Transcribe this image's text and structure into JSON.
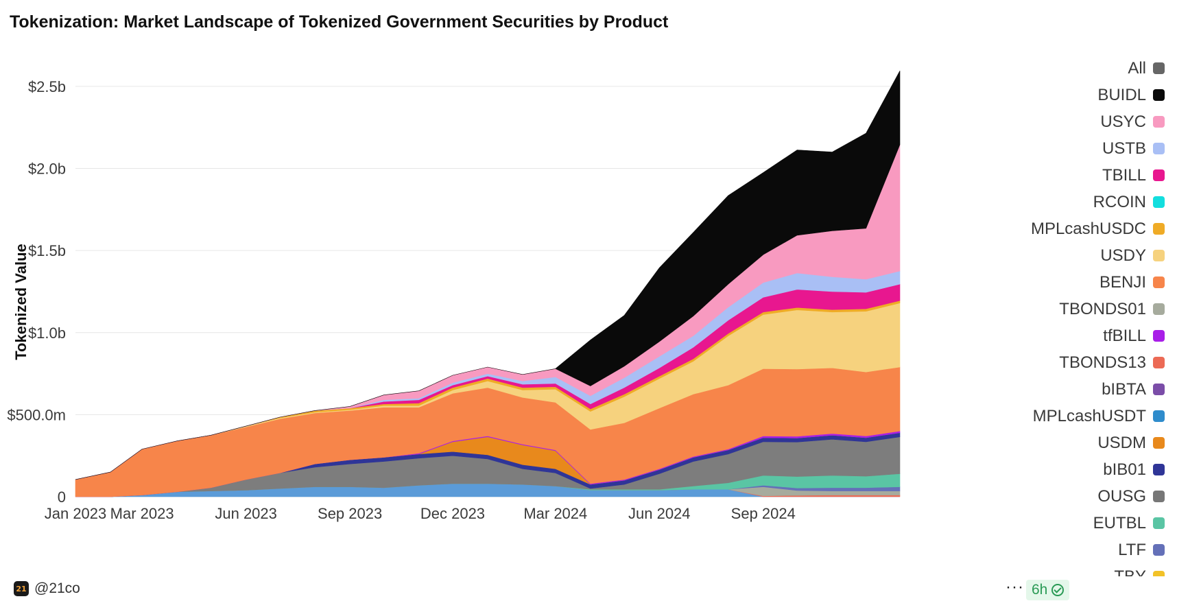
{
  "title": "Tokenization: Market Landscape of Tokenized Government Securities by Product",
  "footer": {
    "handle": "@21co",
    "logo_text": "21",
    "more_label": "···",
    "refresh_label": "6h"
  },
  "chart_data": {
    "type": "area",
    "title": "Tokenization: Market Landscape of Tokenized Government Securities by Product",
    "xlabel": "",
    "ylabel": "Tokenized Value",
    "ylim": [
      0,
      2650000000
    ],
    "grid": true,
    "legend_position": "right",
    "y_ticks": [
      {
        "value": 0,
        "label": "0"
      },
      {
        "value": 500000000,
        "label": "$500.0m"
      },
      {
        "value": 1000000000,
        "label": "$1.0b"
      },
      {
        "value": 1500000000,
        "label": "$1.5b"
      },
      {
        "value": 2000000000,
        "label": "$2.0b"
      },
      {
        "value": 2500000000,
        "label": "$2.5b"
      }
    ],
    "x_ticks": [
      {
        "value": "2023-01-01",
        "label": "Jan 2023"
      },
      {
        "value": "2023-03-01",
        "label": "Mar 2023"
      },
      {
        "value": "2023-06-01",
        "label": "Jun 2023"
      },
      {
        "value": "2023-09-01",
        "label": "Sep 2023"
      },
      {
        "value": "2023-12-01",
        "label": "Dec 2023"
      },
      {
        "value": "2024-03-01",
        "label": "Mar 2024"
      },
      {
        "value": "2024-06-01",
        "label": "Jun 2024"
      },
      {
        "value": "2024-09-01",
        "label": "Sep 2024"
      }
    ],
    "xlim": [
      "2023-01-01",
      "2024-12-31"
    ],
    "legend": [
      {
        "name": "All",
        "color": "#666666"
      },
      {
        "name": "BUIDL",
        "color": "#0a0a0a"
      },
      {
        "name": "USYC",
        "color": "#f89ac0"
      },
      {
        "name": "USTB",
        "color": "#a9bff5"
      },
      {
        "name": "TBILL",
        "color": "#e8178f"
      },
      {
        "name": "RCOIN",
        "color": "#13dede"
      },
      {
        "name": "MPLcashUSDC",
        "color": "#efab26"
      },
      {
        "name": "USDY",
        "color": "#f6d27e"
      },
      {
        "name": "BENJI",
        "color": "#f7854a"
      },
      {
        "name": "TBONDS01",
        "color": "#a6ab9d"
      },
      {
        "name": "tfBILL",
        "color": "#a91ee8"
      },
      {
        "name": "TBONDS13",
        "color": "#ec6a55"
      },
      {
        "name": "bIBTA",
        "color": "#7b4da8"
      },
      {
        "name": "MPLcashUSDT",
        "color": "#2f8ccc"
      },
      {
        "name": "USDM",
        "color": "#e8891c"
      },
      {
        "name": "bIB01",
        "color": "#2f3597"
      },
      {
        "name": "OUSG",
        "color": "#777777"
      },
      {
        "name": "EUTBL",
        "color": "#5ac5a4"
      },
      {
        "name": "LTF",
        "color": "#6470b8"
      },
      {
        "name": "TBY",
        "color": "#f2c228"
      }
    ],
    "x": [
      "2023-01-01",
      "2023-02-01",
      "2023-03-01",
      "2023-04-01",
      "2023-05-01",
      "2023-06-01",
      "2023-07-01",
      "2023-08-01",
      "2023-09-01",
      "2023-10-01",
      "2023-11-01",
      "2023-12-01",
      "2024-01-01",
      "2024-02-01",
      "2024-03-01",
      "2024-04-01",
      "2024-05-01",
      "2024-06-01",
      "2024-07-01",
      "2024-08-01",
      "2024-09-01",
      "2024-10-01",
      "2024-11-01",
      "2024-12-01",
      "2024-12-31"
    ],
    "series": [
      {
        "name": "MPLcashUSDT",
        "color": "#5b9bd8",
        "values": [
          0,
          0,
          10,
          30,
          35,
          40,
          50,
          60,
          60,
          55,
          70,
          80,
          80,
          75,
          65,
          40,
          40,
          40,
          45,
          45,
          0,
          0,
          0,
          0,
          0
        ]
      },
      {
        "name": "TBONDS13",
        "color": "#ec6a55",
        "values": [
          0,
          0,
          0,
          0,
          0,
          0,
          0,
          0,
          0,
          0,
          0,
          0,
          0,
          0,
          0,
          0,
          0,
          0,
          0,
          0,
          5,
          8,
          10,
          10,
          10
        ]
      },
      {
        "name": "TBONDS01",
        "color": "#a6ab9d",
        "values": [
          0,
          0,
          0,
          0,
          0,
          0,
          0,
          0,
          0,
          0,
          0,
          0,
          0,
          0,
          0,
          0,
          0,
          0,
          0,
          0,
          55,
          30,
          25,
          25,
          25
        ]
      },
      {
        "name": "LTF",
        "color": "#6470b8",
        "values": [
          0,
          0,
          0,
          0,
          0,
          0,
          0,
          0,
          0,
          0,
          0,
          0,
          0,
          0,
          0,
          0,
          0,
          0,
          0,
          0,
          10,
          15,
          20,
          20,
          25
        ]
      },
      {
        "name": "EUTBL",
        "color": "#5ac5a4",
        "values": [
          0,
          0,
          0,
          0,
          0,
          0,
          0,
          0,
          0,
          0,
          0,
          0,
          0,
          0,
          0,
          5,
          5,
          5,
          20,
          40,
          60,
          70,
          75,
          70,
          80
        ]
      },
      {
        "name": "OUSG",
        "color": "#7d7d7d",
        "values": [
          0,
          0,
          0,
          0,
          20,
          65,
          95,
          120,
          140,
          160,
          165,
          170,
          150,
          95,
          80,
          5,
          30,
          95,
          150,
          175,
          205,
          210,
          220,
          210,
          225
        ]
      },
      {
        "name": "bIB01",
        "color": "#2f3597",
        "values": [
          0,
          0,
          0,
          0,
          0,
          0,
          0,
          20,
          25,
          25,
          25,
          25,
          25,
          25,
          25,
          25,
          25,
          25,
          25,
          25,
          25,
          25,
          25,
          25,
          25
        ]
      },
      {
        "name": "USDM",
        "color": "#e8891c",
        "values": [
          0,
          0,
          0,
          0,
          0,
          0,
          0,
          0,
          0,
          0,
          0,
          60,
          110,
          120,
          110,
          0,
          0,
          0,
          0,
          0,
          0,
          0,
          0,
          0,
          0
        ]
      },
      {
        "name": "tfBILL",
        "color": "#a91ee8",
        "values": [
          0,
          0,
          0,
          0,
          0,
          0,
          0,
          0,
          0,
          0,
          5,
          5,
          5,
          5,
          5,
          5,
          5,
          5,
          5,
          5,
          10,
          10,
          10,
          10,
          10
        ]
      },
      {
        "name": "BENJI",
        "color": "#f7854a",
        "values": [
          105,
          150,
          280,
          310,
          320,
          320,
          330,
          310,
          300,
          305,
          280,
          290,
          295,
          285,
          290,
          330,
          345,
          370,
          380,
          390,
          410,
          410,
          400,
          390,
          390
        ]
      },
      {
        "name": "USDY",
        "color": "#f6d27e",
        "values": [
          0,
          0,
          0,
          0,
          0,
          5,
          5,
          5,
          5,
          10,
          10,
          20,
          40,
          45,
          80,
          110,
          160,
          180,
          200,
          300,
          330,
          360,
          340,
          370,
          390
        ]
      },
      {
        "name": "MPLcashUSDC",
        "color": "#efab26",
        "values": [
          0,
          0,
          0,
          0,
          0,
          0,
          5,
          10,
          10,
          10,
          15,
          15,
          15,
          15,
          15,
          15,
          15,
          15,
          15,
          15,
          15,
          15,
          15,
          15,
          15
        ]
      },
      {
        "name": "TBILL",
        "color": "#e8178f",
        "values": [
          0,
          0,
          0,
          0,
          0,
          0,
          0,
          0,
          0,
          15,
          20,
          15,
          15,
          20,
          20,
          30,
          40,
          50,
          70,
          80,
          90,
          110,
          110,
          100,
          100
        ]
      },
      {
        "name": "USTB",
        "color": "#a9bff5",
        "values": [
          0,
          0,
          0,
          0,
          0,
          0,
          0,
          0,
          0,
          10,
          10,
          15,
          15,
          20,
          40,
          50,
          60,
          70,
          70,
          80,
          90,
          100,
          90,
          80,
          80
        ]
      },
      {
        "name": "USYC",
        "color": "#f89ac0",
        "values": [
          0,
          0,
          0,
          0,
          0,
          0,
          0,
          0,
          10,
          30,
          45,
          45,
          40,
          40,
          50,
          60,
          70,
          90,
          120,
          140,
          170,
          230,
          280,
          310,
          770
        ]
      },
      {
        "name": "BUIDL",
        "color": "#0a0a0a",
        "values": [
          0,
          0,
          0,
          0,
          0,
          0,
          0,
          0,
          0,
          0,
          0,
          0,
          0,
          0,
          0,
          280,
          310,
          450,
          510,
          540,
          500,
          520,
          480,
          580,
          450
        ]
      }
    ],
    "value_unit": "USD millions"
  }
}
